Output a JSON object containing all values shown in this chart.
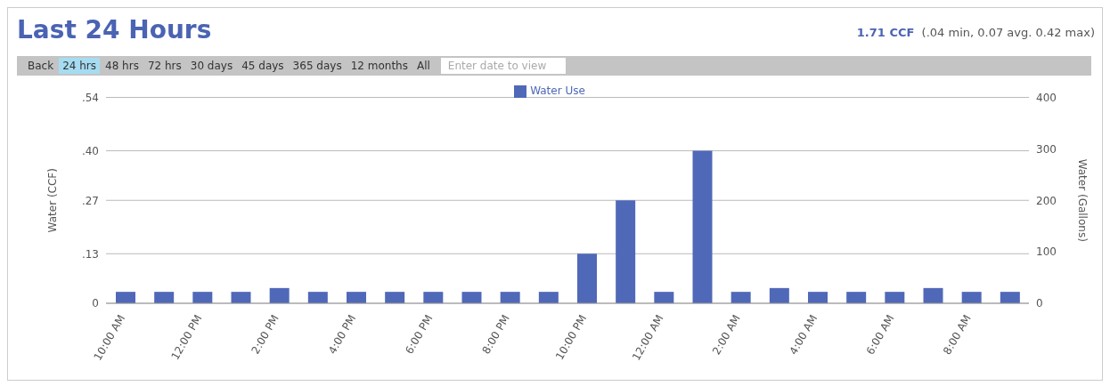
{
  "chart_data": {
    "type": "bar",
    "title": "Last 24 Hours",
    "annotations": [
      "1.71 CCF",
      "(.04 min, 0.07 avg. 0.42 max)",
      "Back",
      "24 hrs",
      "48 hrs",
      "72 hrs",
      "30 days",
      "45 days",
      "365 days",
      "12 months",
      "All",
      "Enter date to view"
    ],
    "categories": [
      "10:00 AM",
      null,
      "12:00 PM",
      null,
      "2:00 PM",
      null,
      "4:00 PM",
      null,
      "6:00 PM",
      null,
      "8:00 PM",
      null,
      "10:00 PM",
      null,
      "12:00 AM",
      null,
      "2:00 AM",
      null,
      "4:00 AM",
      null,
      "6:00 AM",
      null,
      "8:00 AM",
      null
    ],
    "series": [
      {
        "name": "Water Use",
        "color": "#5068b8",
        "values": [
          0.03,
          0.03,
          0.03,
          0.03,
          0.04,
          0.03,
          0.03,
          0.03,
          0.03,
          0.03,
          0.03,
          0.03,
          0.13,
          0.27,
          0.03,
          0.4,
          0.03,
          0.04,
          0.03,
          0.03,
          0.03,
          0.04,
          0.03,
          0.03
        ]
      }
    ],
    "ylabel": "Water (CCF)",
    "y2label": "Water (Gallons)",
    "ylim": [
      0,
      0.54
    ],
    "yticks": [
      {
        "value": 0,
        "label": "0"
      },
      {
        "value": 0.13,
        "label": ".13"
      },
      {
        "value": 0.27,
        "label": ".27"
      },
      {
        "value": 0.4,
        "label": ".40"
      },
      {
        "value": 0.54,
        "label": ".54"
      }
    ],
    "y2lim": [
      0,
      400
    ],
    "y2ticks": [
      0,
      100,
      200,
      300,
      400
    ],
    "grid": "y",
    "legend": "top"
  }
}
